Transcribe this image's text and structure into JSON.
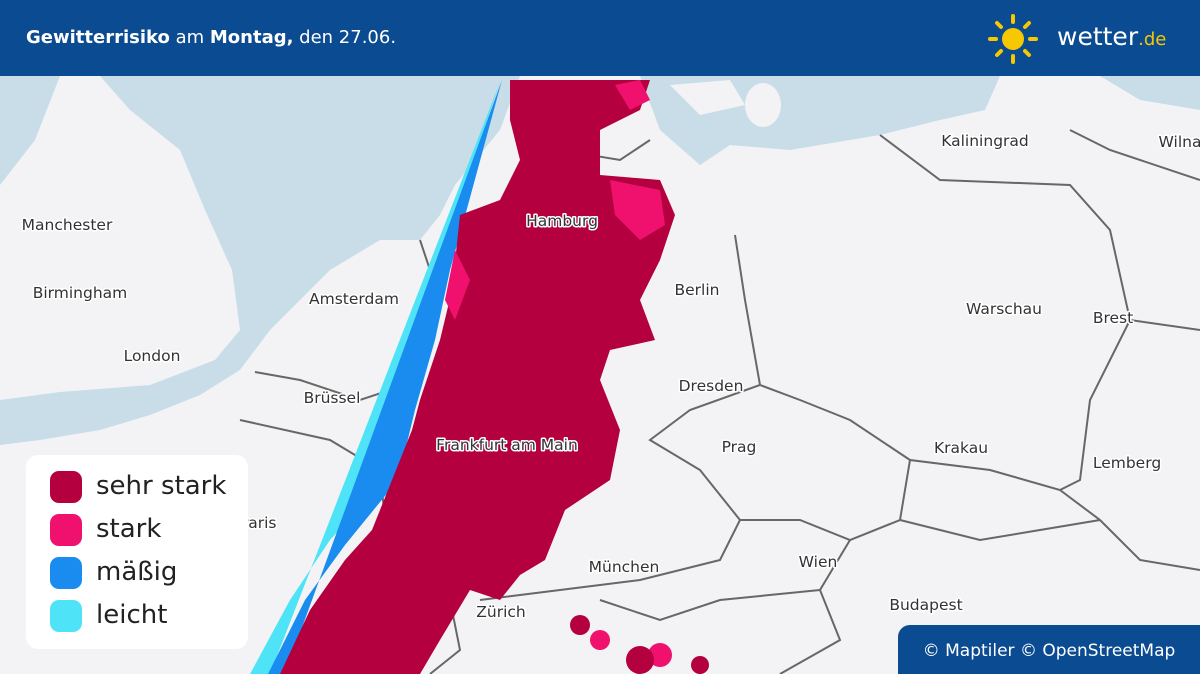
{
  "header": {
    "title": [
      {
        "text": "Gewitterrisiko",
        "bold": true
      },
      {
        "text": " am ",
        "bold": false
      },
      {
        "text": "Montag,",
        "bold": true
      },
      {
        "text": " den 27.06.",
        "bold": false
      }
    ],
    "logo": {
      "name": "wetter",
      "tld": ".de"
    }
  },
  "map": {
    "cities": [
      "Manchester",
      "Birmingham",
      "London",
      "Amsterdam",
      "Brüssel",
      "Paris",
      "Hamburg",
      "Berlin",
      "Dresden",
      "Frankfurt am Main",
      "Prag",
      "München",
      "Wien",
      "Zürich",
      "Budapest",
      "Kaliningrad",
      "Wilna",
      "Warschau",
      "Brest",
      "Krakau",
      "Lemberg"
    ]
  },
  "legend": {
    "items": [
      {
        "label": "sehr stark",
        "color": "#b4003e"
      },
      {
        "label": "stark",
        "color": "#f0116e"
      },
      {
        "label": "mäßig",
        "color": "#1a8cf0"
      },
      {
        "label": "leicht",
        "color": "#4fe3f7"
      }
    ]
  },
  "attribution": "© Maptiler © OpenStreetMap"
}
